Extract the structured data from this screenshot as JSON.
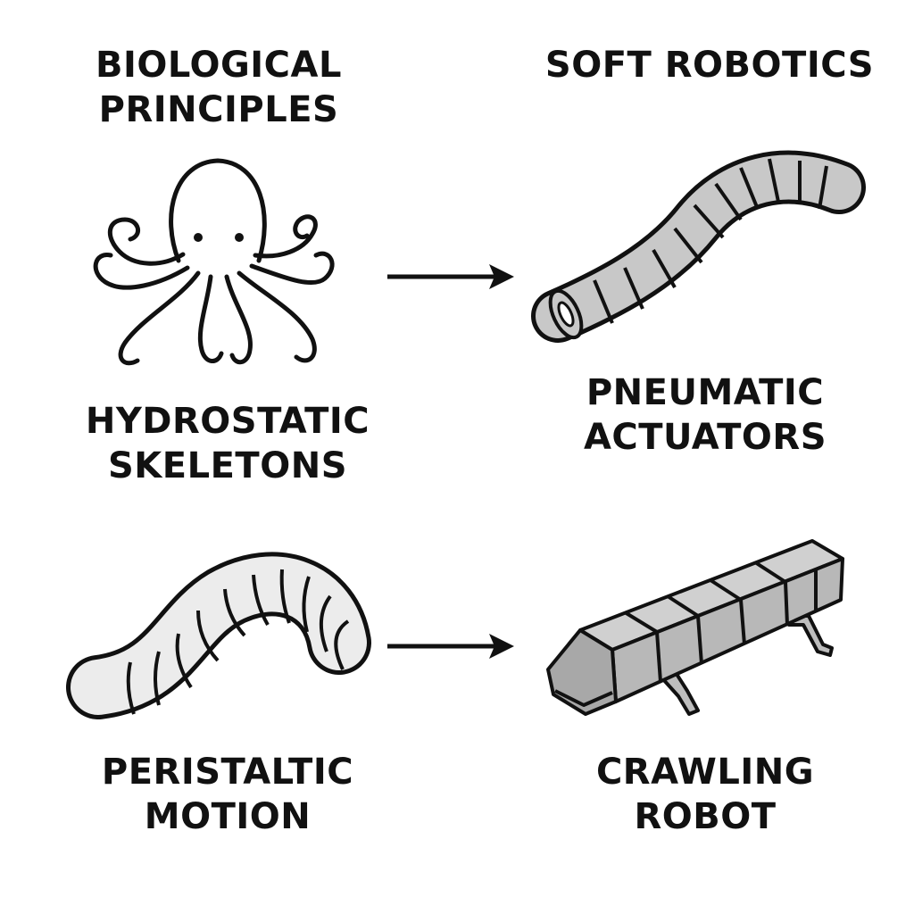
{
  "headers": {
    "left": {
      "line1": "BIOLOGICAL",
      "line2": "PRINCIPLES"
    },
    "right": {
      "line1": "SOFT ROBOTICS"
    }
  },
  "rows": [
    {
      "biological": {
        "icon": "octopus-icon",
        "line1": "HYDROSTATIC",
        "line2": "SKELETONS"
      },
      "robotic": {
        "icon": "pneumatic-actuator-icon",
        "line1": "PNEUMATIC",
        "line2": "ACTUATORS"
      }
    },
    {
      "biological": {
        "icon": "worm-icon",
        "line1": "PERISTALTIC",
        "line2": "MOTION"
      },
      "robotic": {
        "icon": "crawling-robot-icon",
        "line1": "CRAWLING",
        "line2": "ROBOT"
      }
    }
  ],
  "colors": {
    "ink": "#111111",
    "segment_fill": "#c8c8c8",
    "worm_fill": "#ececec"
  }
}
